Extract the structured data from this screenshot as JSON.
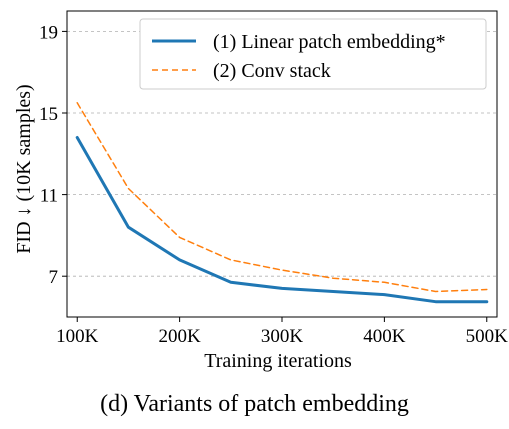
{
  "caption": "(d) Variants of patch embedding",
  "chart_data": {
    "type": "line",
    "xlabel": "Training iterations",
    "ylabel": "FID ↓ (10K samples)",
    "x": [
      100000,
      150000,
      200000,
      250000,
      300000,
      350000,
      400000,
      450000,
      500000
    ],
    "xticks": [
      100000,
      200000,
      300000,
      400000,
      500000
    ],
    "xtick_labels": [
      "100K",
      "200K",
      "300K",
      "400K",
      "500K"
    ],
    "yticks": [
      7,
      11,
      15,
      19
    ],
    "ytick_labels": [
      "7",
      "11",
      "15",
      "19"
    ],
    "xlim": [
      90000,
      510000
    ],
    "ylim": [
      5.0,
      20.0
    ],
    "grid": "y-dashed",
    "legend_position": "top-right",
    "series": [
      {
        "name": "(1) Linear patch embedding*",
        "values": [
          13.8,
          9.4,
          7.8,
          6.7,
          6.4,
          6.25,
          6.1,
          5.75,
          5.75
        ],
        "color": "#1f77b4",
        "style": "solid"
      },
      {
        "name": "(2) Conv stack",
        "values": [
          15.5,
          11.3,
          8.9,
          7.8,
          7.3,
          6.9,
          6.7,
          6.25,
          6.35
        ],
        "color": "#ff7f0e",
        "style": "dashed"
      }
    ]
  }
}
